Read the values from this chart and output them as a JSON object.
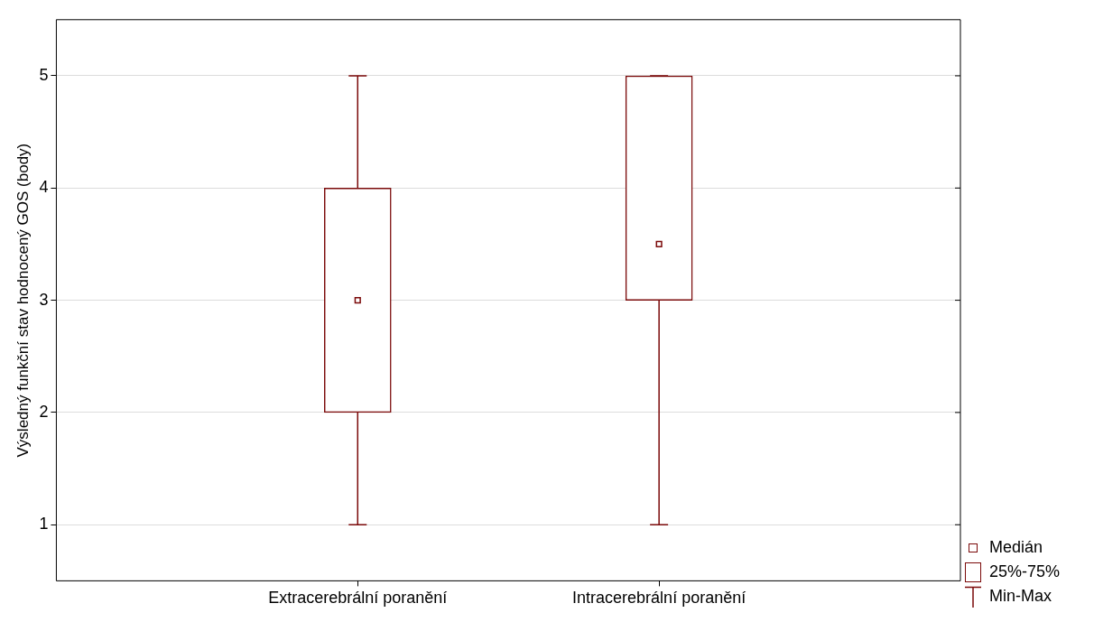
{
  "chart_data": {
    "type": "box",
    "ylabel": "Výsledný funkční stav hodnocený GOS (body)",
    "categories": [
      "Extracerebrální poranění",
      "Intracerebrální poranění"
    ],
    "color": "#7b0a0a",
    "boxes": [
      {
        "low": 1,
        "q1": 2,
        "median": 3,
        "q3": 4,
        "high": 5
      },
      {
        "low": 1,
        "q1": 3,
        "median": 3.5,
        "q3": 5,
        "high": 5
      }
    ],
    "ylim": [
      0.5,
      5.5
    ],
    "yticks": [
      1,
      2,
      3,
      4,
      5
    ],
    "grid": "y",
    "marker": "square",
    "annotations": [
      "Medián",
      "25%-75%",
      "Min-Max"
    ]
  }
}
